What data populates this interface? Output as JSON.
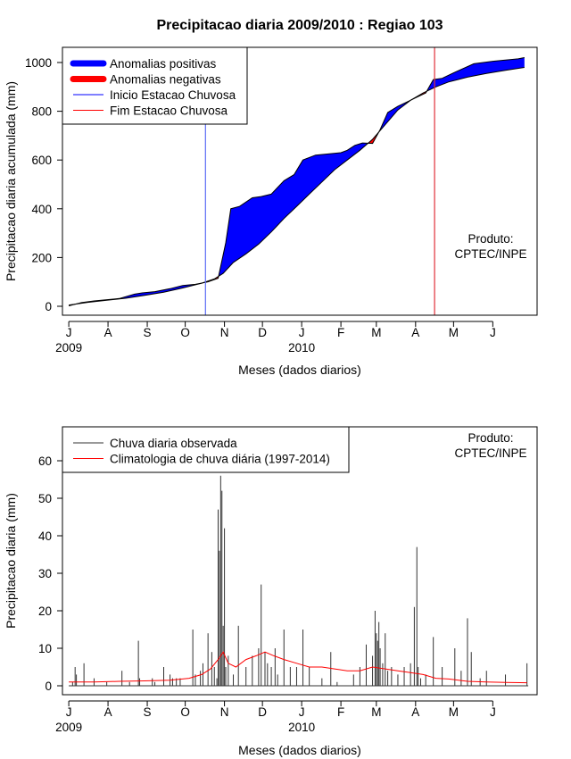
{
  "chart_data": [
    {
      "type": "area",
      "title": "Precipitacao diaria 2009/2010 : Regiao 103",
      "xlabel": "Meses (dados diarios)",
      "ylabel": "Precipitacao diaria acumulada (mm)",
      "ylim": [
        0,
        1000
      ],
      "yticks": [
        0,
        200,
        400,
        600,
        800,
        1000
      ],
      "xlim_days": [
        -5,
        370
      ],
      "month_ticks": [
        {
          "day": 0,
          "label": "J"
        },
        {
          "day": 31,
          "label": "A"
        },
        {
          "day": 62,
          "label": "S"
        },
        {
          "day": 92,
          "label": "O"
        },
        {
          "day": 123,
          "label": "N"
        },
        {
          "day": 153,
          "label": "D"
        },
        {
          "day": 184,
          "label": "J"
        },
        {
          "day": 215,
          "label": "F"
        },
        {
          "day": 243,
          "label": "M"
        },
        {
          "day": 274,
          "label": "A"
        },
        {
          "day": 304,
          "label": "M"
        },
        {
          "day": 335,
          "label": "J"
        }
      ],
      "year_labels": [
        {
          "day": 0,
          "label": "2009"
        },
        {
          "day": 184,
          "label": "2010"
        }
      ],
      "legend": [
        {
          "label": "Anomalias positivas",
          "color": "#0000ff",
          "style": "thick"
        },
        {
          "label": "Anomalias negativas",
          "color": "#ff0000",
          "style": "thick"
        },
        {
          "label": "Inicio Estacao Chuvosa",
          "color": "#0000ff",
          "style": "thin"
        },
        {
          "label": "Fim Estacao Chuvosa",
          "color": "#ff0000",
          "style": "thin"
        }
      ],
      "annotation": [
        "Produto:",
        "CPTEC/INPE"
      ],
      "positive_color": "#0000ff",
      "negative_color": "#ff0000",
      "onset_day": 108,
      "end_day": 289,
      "onset_color": "#5b6cf5",
      "end_color": "#e0303a",
      "series": [
        {
          "name": "Observada acumulada",
          "days": [
            0,
            10,
            20,
            40,
            52,
            58,
            68,
            80,
            90,
            100,
            110,
            118,
            124,
            128,
            135,
            145,
            152,
            160,
            170,
            178,
            185,
            195,
            205,
            215,
            220,
            226,
            232,
            240,
            246,
            252,
            260,
            270,
            276,
            282,
            288,
            295,
            305,
            320,
            335,
            345,
            355,
            360
          ],
          "values": [
            2,
            15,
            22,
            32,
            50,
            55,
            60,
            72,
            85,
            90,
            100,
            115,
            260,
            400,
            410,
            445,
            450,
            460,
            515,
            540,
            600,
            620,
            625,
            630,
            640,
            660,
            670,
            668,
            725,
            795,
            820,
            845,
            860,
            875,
            930,
            935,
            960,
            995,
            1005,
            1010,
            1015,
            1020
          ]
        },
        {
          "name": "Climatologia acumulada",
          "days": [
            0,
            15,
            30,
            45,
            60,
            75,
            90,
            105,
            115,
            122,
            130,
            140,
            150,
            160,
            170,
            180,
            190,
            200,
            210,
            220,
            230,
            240,
            250,
            260,
            270,
            280,
            290,
            300,
            315,
            330,
            345,
            360
          ],
          "values": [
            5,
            16,
            25,
            33,
            45,
            58,
            75,
            95,
            112,
            135,
            180,
            215,
            255,
            305,
            360,
            410,
            460,
            510,
            560,
            600,
            640,
            685,
            745,
            805,
            845,
            875,
            900,
            920,
            940,
            955,
            968,
            980
          ]
        }
      ]
    },
    {
      "type": "bar",
      "xlabel": "Meses (dados diarios)",
      "ylabel": "Precipitacao diaria (mm)",
      "ylim": [
        0,
        65
      ],
      "yticks": [
        0,
        10,
        20,
        30,
        40,
        50,
        60
      ],
      "xlim_days": [
        -5,
        370
      ],
      "month_ticks": [
        {
          "day": 0,
          "label": "J"
        },
        {
          "day": 31,
          "label": "A"
        },
        {
          "day": 62,
          "label": "S"
        },
        {
          "day": 92,
          "label": "O"
        },
        {
          "day": 123,
          "label": "N"
        },
        {
          "day": 153,
          "label": "D"
        },
        {
          "day": 184,
          "label": "J"
        },
        {
          "day": 215,
          "label": "F"
        },
        {
          "day": 243,
          "label": "M"
        },
        {
          "day": 274,
          "label": "A"
        },
        {
          "day": 304,
          "label": "M"
        },
        {
          "day": 335,
          "label": "J"
        }
      ],
      "year_labels": [
        {
          "day": 0,
          "label": "2009"
        },
        {
          "day": 184,
          "label": "2010"
        }
      ],
      "legend": [
        {
          "label": "Chuva diaria observada",
          "color": "#333333"
        },
        {
          "label": "Climatologia de chuva diária (1997-2014)",
          "color": "#ff0000"
        }
      ],
      "annotation": [
        "Produto:",
        "CPTEC/INPE"
      ],
      "bar_color": "#333333",
      "climatology_color": "#ff0000",
      "bars": {
        "days": [
          3,
          5,
          6,
          12,
          20,
          30,
          42,
          48,
          55,
          56,
          66,
          68,
          75,
          80,
          82,
          85,
          88,
          98,
          100,
          104,
          106,
          110,
          113,
          115,
          117,
          118,
          119,
          120,
          121,
          122,
          123,
          124,
          126,
          130,
          134,
          140,
          145,
          150,
          152,
          155,
          157,
          160,
          163,
          165,
          170,
          175,
          180,
          185,
          190,
          200,
          207,
          212,
          225,
          230,
          235,
          240,
          242,
          243,
          244,
          245,
          246,
          248,
          250,
          252,
          255,
          260,
          265,
          270,
          273,
          275,
          276,
          278,
          282,
          288,
          295,
          305,
          310,
          315,
          318,
          325,
          330,
          345,
          362
        ],
        "values": [
          1,
          5,
          3,
          6,
          2,
          1,
          4,
          1,
          12,
          2,
          2,
          1,
          5,
          3,
          2,
          2,
          2,
          15,
          3,
          4,
          6,
          14,
          9,
          5,
          2,
          47,
          36,
          56,
          52,
          16,
          42,
          5,
          8,
          3,
          16,
          5,
          8,
          10,
          27,
          9,
          6,
          5,
          10,
          3,
          15,
          5,
          5,
          15,
          5,
          2,
          9,
          1,
          3,
          5,
          11,
          8,
          20,
          14,
          12,
          17,
          10,
          6,
          14,
          4,
          5,
          3,
          5,
          6,
          21,
          37,
          5,
          2,
          3,
          13,
          5,
          10,
          4,
          18,
          9,
          2,
          4,
          3,
          6
        ]
      },
      "climatology": {
        "days": [
          0,
          20,
          40,
          60,
          80,
          95,
          105,
          112,
          118,
          122,
          126,
          132,
          140,
          148,
          155,
          162,
          170,
          180,
          190,
          200,
          210,
          220,
          230,
          240,
          250,
          260,
          270,
          280,
          290,
          300,
          315,
          330,
          345,
          362
        ],
        "values": [
          1,
          1,
          1.2,
          1.3,
          1.5,
          2,
          3,
          4.5,
          7,
          9,
          6,
          5,
          7,
          8,
          9,
          8,
          7,
          6,
          5,
          5,
          4.5,
          4,
          4,
          5,
          4.5,
          4,
          3.5,
          3,
          2,
          1.8,
          1.2,
          1,
          0.9,
          0.8
        ]
      }
    }
  ]
}
